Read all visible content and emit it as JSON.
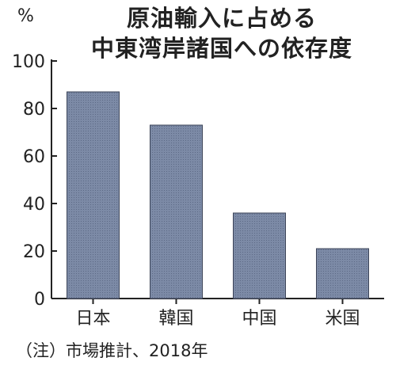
{
  "chart_data": {
    "type": "bar",
    "title_lines": [
      "原油輸入に占める",
      "中東湾岸諸国への依存度"
    ],
    "ylabel": "%",
    "categories": [
      "日本",
      "韓国",
      "中国",
      "米国"
    ],
    "values": [
      87,
      73,
      36,
      21
    ],
    "ylim": [
      0,
      100
    ],
    "yticks": [
      0,
      20,
      40,
      60,
      80,
      100
    ],
    "grid": false,
    "legend": "none",
    "note": "（注）市場推計、2018年",
    "colors": {
      "bar": "#7c8aa6",
      "bar_stroke": "#3c4458",
      "axis": "#222222"
    }
  }
}
